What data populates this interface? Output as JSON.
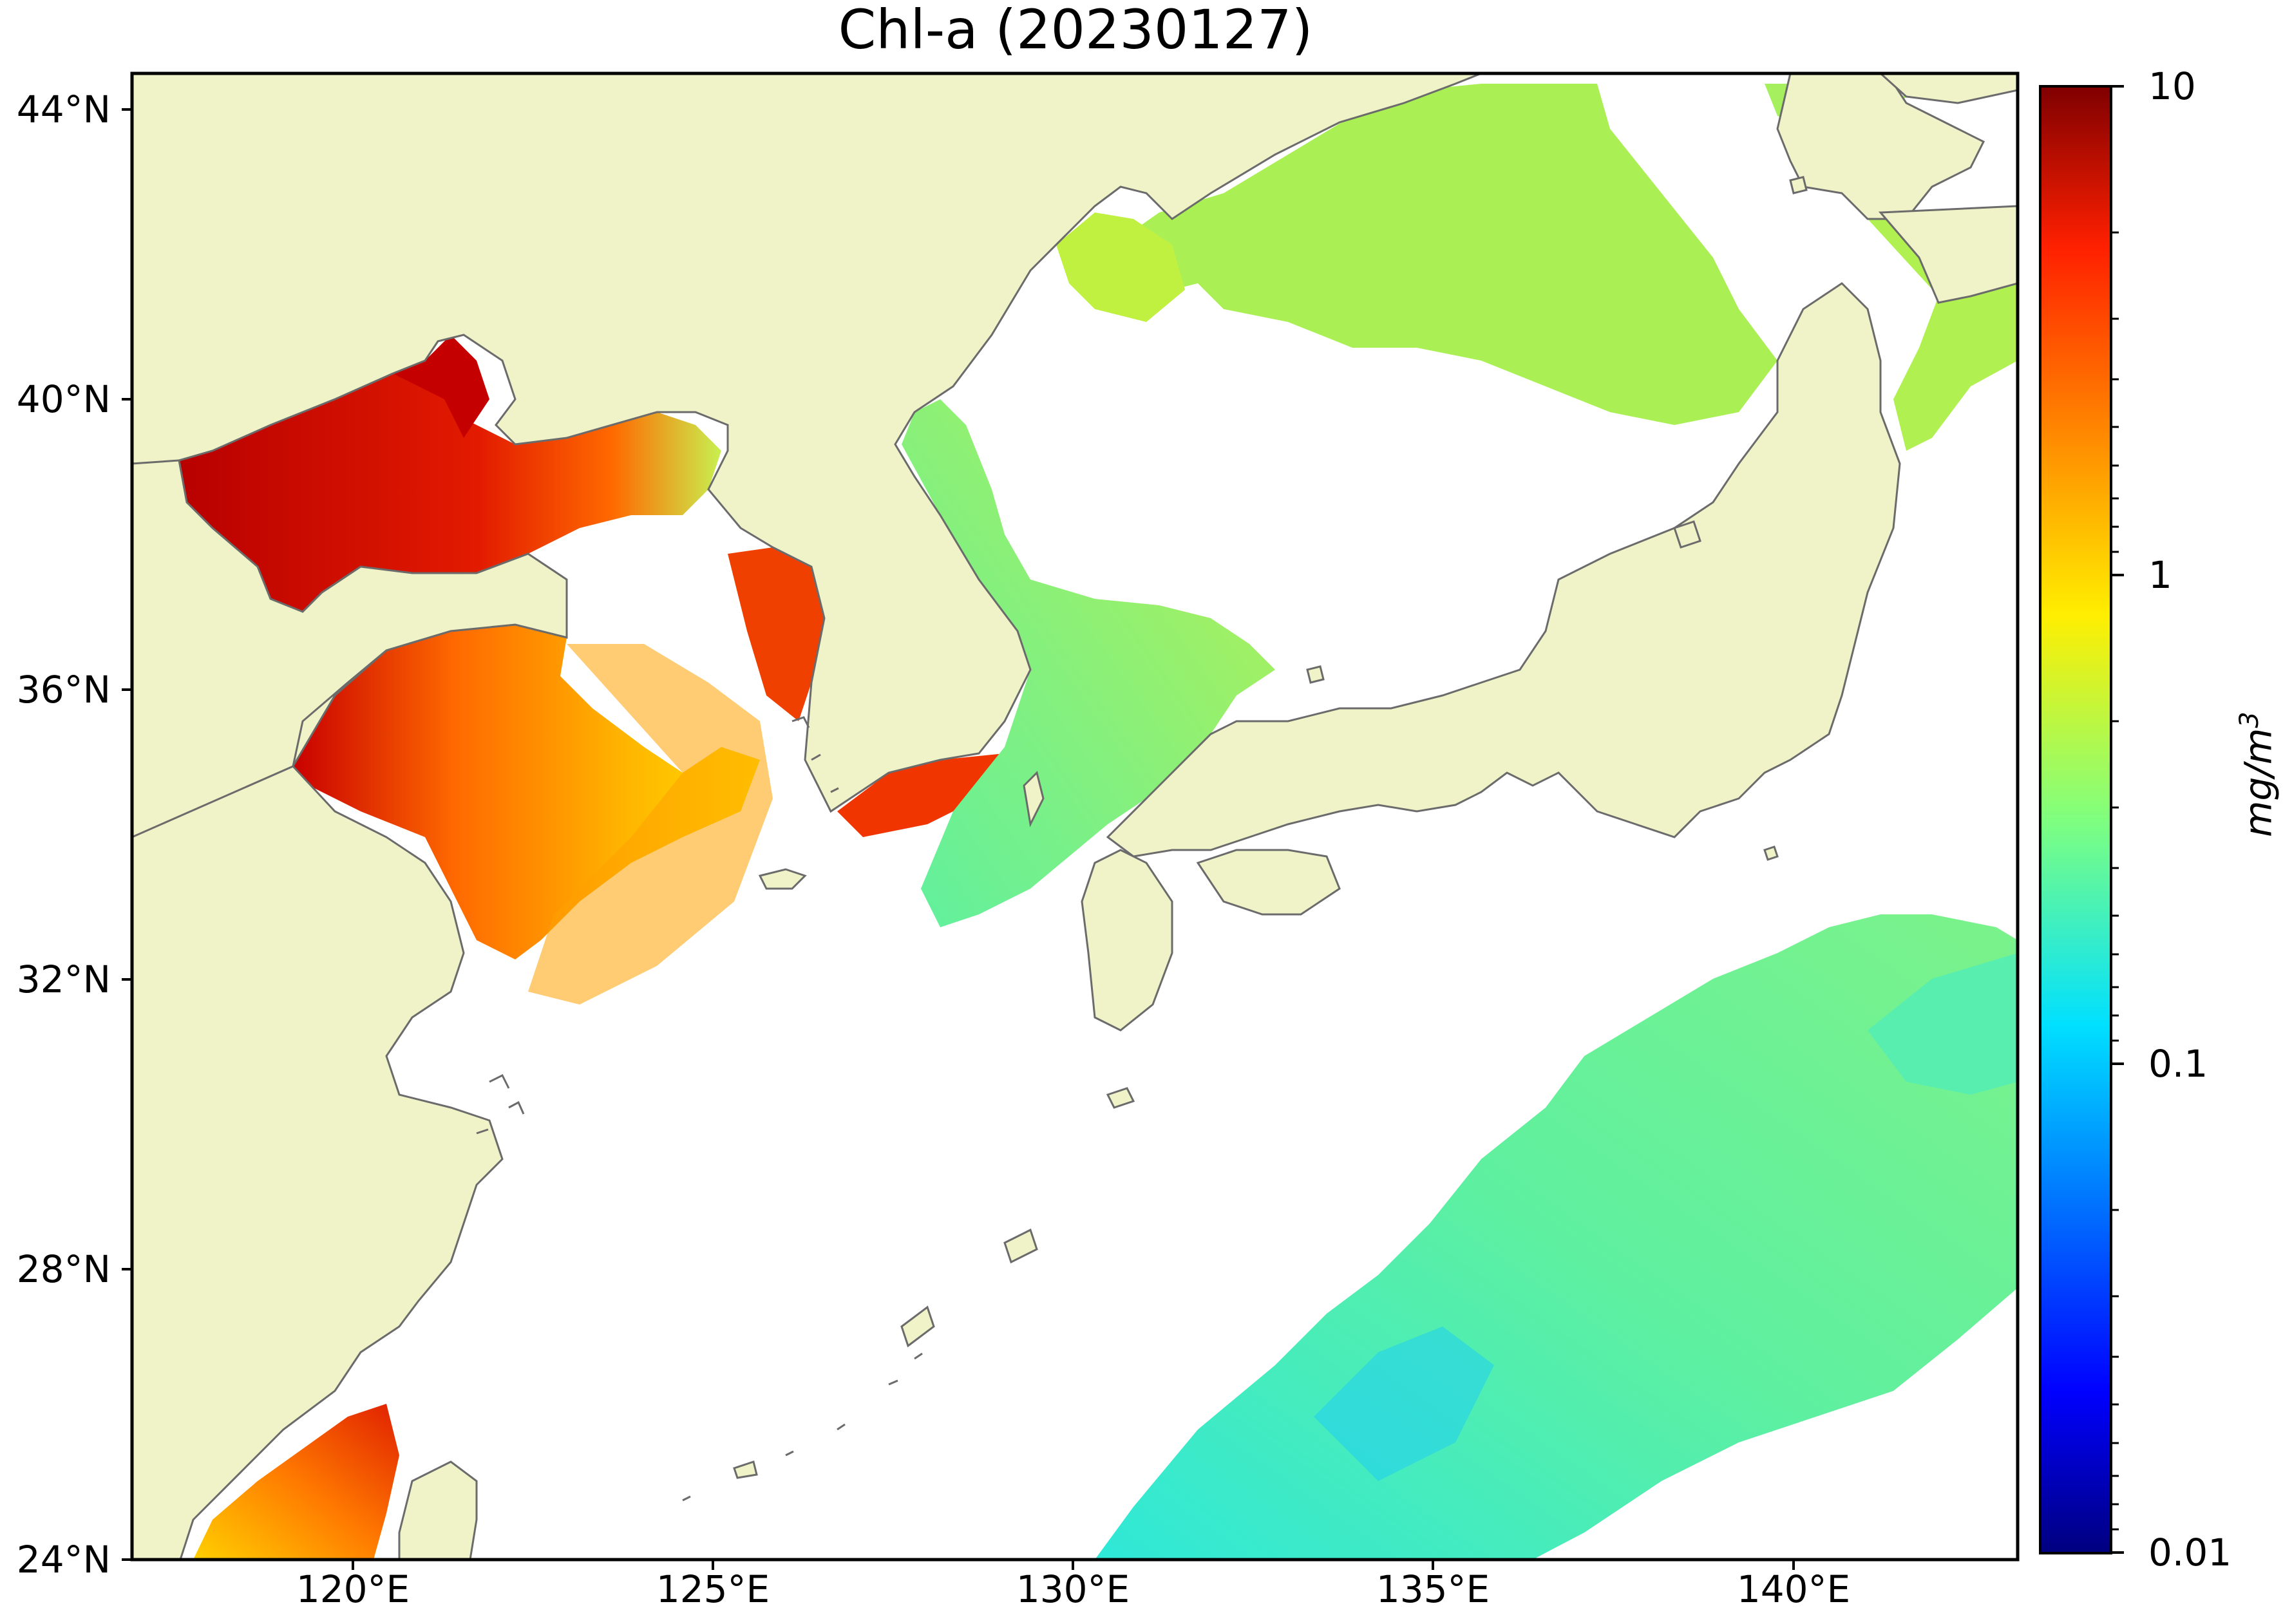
{
  "title": "Chl-a (20230127)",
  "map": {
    "lat_labels": [
      "44°N",
      "40°N",
      "36°N",
      "32°N",
      "28°N",
      "24°N"
    ],
    "lon_labels": [
      "120°E",
      "125°E",
      "130°E",
      "135°E",
      "140°E"
    ],
    "colors": {
      "land": "#f0f3c8",
      "coastline": "#6b6b6b",
      "no_data": "#ffffff"
    }
  },
  "colorbar": {
    "tick_labels": [
      "10",
      "1",
      "0.1",
      "0.01"
    ],
    "unit_base": "mg/m",
    "unit_exponent": "3",
    "scale": "log",
    "colormap": "jet"
  }
}
